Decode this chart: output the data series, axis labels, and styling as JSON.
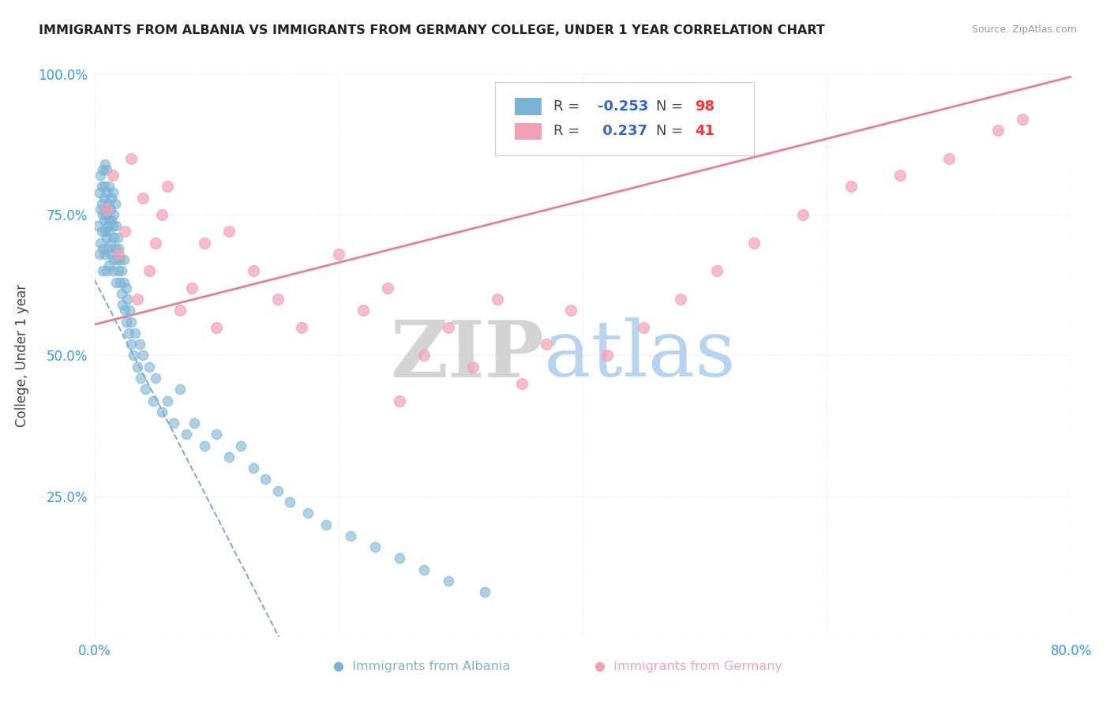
{
  "title": "IMMIGRANTS FROM ALBANIA VS IMMIGRANTS FROM GERMANY COLLEGE, UNDER 1 YEAR CORRELATION CHART",
  "source": "Source: ZipAtlas.com",
  "ylabel": "College, Under 1 year",
  "x_min": 0.0,
  "x_max": 0.8,
  "y_min": 0.0,
  "y_max": 1.0,
  "albania_color": "#7ab3d4",
  "germany_color": "#f4a0b4",
  "albania_line_color": "#5588bb",
  "germany_line_color": "#e8708a",
  "albania_R": -0.253,
  "albania_N": 98,
  "germany_R": 0.237,
  "germany_N": 41,
  "R_color": "#3366cc",
  "N_color": "#ff3333",
  "tick_color": "#3399ff",
  "label_color": "#444444",
  "watermark_zip_color": "#cccccc",
  "watermark_atlas_color": "#aaccee",
  "grid_color": "#dddddd",
  "legend_border_color": "#cccccc",
  "source_color": "#999999",
  "title_color": "#222222",
  "albania_intercept": 0.635,
  "albania_slope": -4.2,
  "germany_intercept": 0.555,
  "germany_slope": 0.55,
  "albania_x": [
    0.003,
    0.004,
    0.004,
    0.005,
    0.005,
    0.005,
    0.006,
    0.006,
    0.006,
    0.007,
    0.007,
    0.007,
    0.007,
    0.008,
    0.008,
    0.008,
    0.009,
    0.009,
    0.009,
    0.009,
    0.01,
    0.01,
    0.01,
    0.01,
    0.01,
    0.011,
    0.011,
    0.011,
    0.012,
    0.012,
    0.012,
    0.012,
    0.013,
    0.013,
    0.013,
    0.014,
    0.014,
    0.015,
    0.015,
    0.015,
    0.016,
    0.016,
    0.016,
    0.017,
    0.017,
    0.018,
    0.018,
    0.019,
    0.019,
    0.02,
    0.02,
    0.021,
    0.021,
    0.022,
    0.022,
    0.023,
    0.024,
    0.024,
    0.025,
    0.026,
    0.026,
    0.027,
    0.028,
    0.029,
    0.03,
    0.03,
    0.032,
    0.033,
    0.035,
    0.037,
    0.038,
    0.04,
    0.042,
    0.045,
    0.048,
    0.05,
    0.055,
    0.06,
    0.065,
    0.07,
    0.075,
    0.082,
    0.09,
    0.1,
    0.11,
    0.12,
    0.13,
    0.14,
    0.15,
    0.16,
    0.175,
    0.19,
    0.21,
    0.23,
    0.25,
    0.27,
    0.29,
    0.32
  ],
  "albania_y": [
    0.73,
    0.79,
    0.68,
    0.82,
    0.76,
    0.7,
    0.77,
    0.72,
    0.8,
    0.75,
    0.69,
    0.83,
    0.65,
    0.78,
    0.74,
    0.8,
    0.72,
    0.76,
    0.68,
    0.84,
    0.71,
    0.75,
    0.79,
    0.65,
    0.83,
    0.73,
    0.77,
    0.69,
    0.74,
    0.8,
    0.66,
    0.72,
    0.76,
    0.7,
    0.68,
    0.74,
    0.78,
    0.65,
    0.73,
    0.79,
    0.67,
    0.71,
    0.75,
    0.69,
    0.77,
    0.63,
    0.73,
    0.67,
    0.71,
    0.65,
    0.69,
    0.63,
    0.67,
    0.61,
    0.65,
    0.59,
    0.63,
    0.67,
    0.58,
    0.62,
    0.56,
    0.6,
    0.54,
    0.58,
    0.52,
    0.56,
    0.5,
    0.54,
    0.48,
    0.52,
    0.46,
    0.5,
    0.44,
    0.48,
    0.42,
    0.46,
    0.4,
    0.42,
    0.38,
    0.44,
    0.36,
    0.38,
    0.34,
    0.36,
    0.32,
    0.34,
    0.3,
    0.28,
    0.26,
    0.24,
    0.22,
    0.2,
    0.18,
    0.16,
    0.14,
    0.12,
    0.1,
    0.08
  ],
  "germany_x": [
    0.01,
    0.015,
    0.02,
    0.025,
    0.03,
    0.035,
    0.04,
    0.045,
    0.05,
    0.055,
    0.06,
    0.07,
    0.08,
    0.09,
    0.1,
    0.11,
    0.13,
    0.15,
    0.17,
    0.2,
    0.22,
    0.24,
    0.25,
    0.27,
    0.29,
    0.31,
    0.33,
    0.35,
    0.37,
    0.39,
    0.42,
    0.45,
    0.48,
    0.51,
    0.54,
    0.58,
    0.62,
    0.66,
    0.7,
    0.74,
    0.76
  ],
  "germany_y": [
    0.76,
    0.82,
    0.68,
    0.72,
    0.85,
    0.6,
    0.78,
    0.65,
    0.7,
    0.75,
    0.8,
    0.58,
    0.62,
    0.7,
    0.55,
    0.72,
    0.65,
    0.6,
    0.55,
    0.68,
    0.58,
    0.62,
    0.42,
    0.5,
    0.55,
    0.48,
    0.6,
    0.45,
    0.52,
    0.58,
    0.5,
    0.55,
    0.6,
    0.65,
    0.7,
    0.75,
    0.8,
    0.82,
    0.85,
    0.9,
    0.92
  ]
}
